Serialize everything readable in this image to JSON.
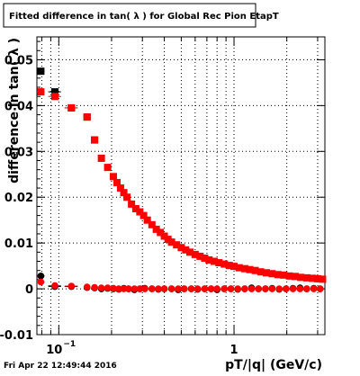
{
  "title": "Fitted difference in tan( λ ) for Global Rec Pion EtapT",
  "timestamp": "Fri Apr 22 12:49:44 2016",
  "colors": {
    "series_red": "#ff0000",
    "series_black": "#000000",
    "grid": "#000000",
    "frame": "#000000"
  },
  "chart_data": {
    "type": "scatter",
    "title": "Fitted difference in tan( λ ) for Global Rec Pion EtapT",
    "xlabel": "pT/|q| (GeV/c)",
    "ylabel": "difference in  tan( λ )",
    "xscale": "log",
    "xlim": [
      0.075,
      3.3
    ],
    "ylim": [
      -0.01,
      0.055
    ],
    "grid": true,
    "x_ticks": [
      {
        "value": 0.1,
        "label": "10",
        "exp": "−1"
      },
      {
        "value": 1,
        "label": "1",
        "exp": ""
      }
    ],
    "y_ticks": [
      {
        "value": -0.01,
        "label": "-0.01"
      },
      {
        "value": 0,
        "label": "0"
      },
      {
        "value": 0.01,
        "label": "0.01"
      },
      {
        "value": 0.02,
        "label": "0.02"
      },
      {
        "value": 0.03,
        "label": "0.03"
      },
      {
        "value": 0.04,
        "label": "0.04"
      },
      {
        "value": 0.05,
        "label": "0.05"
      }
    ],
    "series": [
      {
        "color": "#000000",
        "marker": "square",
        "x": [
          0.079,
          0.095,
          0.118,
          0.145,
          0.16
        ],
        "y": [
          0.0475,
          0.043,
          0.0395,
          0.0375,
          0.0325
        ],
        "xerr": [
          0.004,
          0.008,
          0.01,
          0.004,
          0.003
        ]
      },
      {
        "color": "#ff0000",
        "marker": "square",
        "x": [
          0.079,
          0.095,
          0.118,
          0.145,
          0.16,
          0.175,
          0.19,
          0.205,
          0.215,
          0.225,
          0.235,
          0.245,
          0.26,
          0.275,
          0.29,
          0.305,
          0.32,
          0.34,
          0.36,
          0.38,
          0.4,
          0.42,
          0.44,
          0.47,
          0.5,
          0.53,
          0.56,
          0.6,
          0.64,
          0.68,
          0.72,
          0.77,
          0.82,
          0.88,
          0.94,
          1.0,
          1.07,
          1.15,
          1.23,
          1.32,
          1.42,
          1.53,
          1.65,
          1.78,
          1.92,
          2.07,
          2.23,
          2.4,
          2.6,
          2.8,
          3.0,
          3.2
        ],
        "y": [
          0.043,
          0.042,
          0.0395,
          0.0375,
          0.0325,
          0.0285,
          0.0265,
          0.0245,
          0.0232,
          0.022,
          0.021,
          0.02,
          0.0185,
          0.0175,
          0.0168,
          0.016,
          0.015,
          0.014,
          0.013,
          0.0123,
          0.0115,
          0.0108,
          0.0102,
          0.0096,
          0.009,
          0.0085,
          0.008,
          0.0075,
          0.0071,
          0.0067,
          0.0063,
          0.006,
          0.0057,
          0.0054,
          0.0051,
          0.0049,
          0.0046,
          0.0044,
          0.0042,
          0.004,
          0.0037,
          0.0035,
          0.0033,
          0.0031,
          0.003,
          0.0028,
          0.0027,
          0.0025,
          0.0024,
          0.0023,
          0.0022,
          0.0021
        ],
        "xerr": [
          0.004,
          0.008,
          0.01,
          0.004,
          0.003,
          0.006,
          0.006,
          0.006,
          0.005,
          0.005,
          0.005,
          0.005,
          0.007,
          0.007,
          0.007,
          0.007,
          0.008,
          0.01,
          0.01,
          0.01,
          0.01,
          0.01,
          0.012,
          0.015,
          0.015,
          0.015,
          0.018,
          0.02,
          0.02,
          0.02,
          0.025,
          0.025,
          0.03,
          0.03,
          0.03,
          0.035,
          0.035,
          0.04,
          0.045,
          0.045,
          0.05,
          0.055,
          0.06,
          0.065,
          0.07,
          0.075,
          0.08,
          0.085,
          0.1,
          0.1,
          0.1,
          0.1
        ]
      },
      {
        "color": "#000000",
        "marker": "circle",
        "x": [
          0.079,
          0.095,
          0.118,
          0.145,
          0.16,
          0.175,
          0.19,
          0.205,
          0.22,
          0.235,
          0.25,
          0.27,
          0.29,
          0.31,
          0.34,
          0.37,
          0.4,
          0.44,
          0.48,
          0.52,
          0.57,
          0.62,
          0.68,
          0.74,
          0.8,
          0.88,
          0.96,
          1.05,
          1.15,
          1.26,
          1.38,
          1.51,
          1.65,
          1.81,
          1.98,
          2.17,
          2.38,
          2.6,
          2.85,
          3.1
        ],
        "y": [
          0.0028,
          0.0005,
          0.0005,
          0.0003,
          0.0002,
          0.0,
          0.0001,
          0.0,
          -0.0001,
          0.0001,
          0.0,
          -0.0002,
          0.0,
          0.0001,
          0.0,
          -0.0001,
          0.0,
          0.0,
          -0.0002,
          0.0,
          0.0,
          -0.0001,
          0.0,
          0.0,
          -0.0002,
          0.0,
          0.0,
          -0.0001,
          0.0,
          0.0002,
          0.0,
          0.0,
          0.0001,
          -0.0001,
          0.0,
          0.0001,
          0.0002,
          0.0,
          0.0001,
          0.0
        ],
        "xerr": [
          0.004,
          0.008,
          0.01,
          0.004,
          0.003,
          0.006,
          0.006,
          0.006,
          0.006,
          0.006,
          0.007,
          0.008,
          0.008,
          0.01,
          0.012,
          0.012,
          0.014,
          0.016,
          0.018,
          0.02,
          0.022,
          0.024,
          0.026,
          0.028,
          0.03,
          0.034,
          0.036,
          0.04,
          0.045,
          0.05,
          0.055,
          0.06,
          0.065,
          0.07,
          0.075,
          0.08,
          0.09,
          0.1,
          0.1,
          0.1
        ]
      },
      {
        "color": "#ff0000",
        "marker": "circle",
        "x": [
          0.079,
          0.095,
          0.118,
          0.145,
          0.16,
          0.175,
          0.19,
          0.205,
          0.22,
          0.235,
          0.25,
          0.27,
          0.29,
          0.31,
          0.34,
          0.37,
          0.4,
          0.44,
          0.48,
          0.52,
          0.57,
          0.62,
          0.68,
          0.74,
          0.8,
          0.88,
          0.96,
          1.05,
          1.15,
          1.26,
          1.38,
          1.51,
          1.65,
          1.81,
          1.98,
          2.17,
          2.38,
          2.6,
          2.85,
          3.1
        ],
        "y": [
          0.0015,
          0.0007,
          0.0006,
          0.0004,
          0.0003,
          0.0002,
          0.0002,
          0.0001,
          0.0,
          0.0,
          0.0,
          0.0,
          0.0,
          0.0,
          0.0,
          0.0,
          0.0,
          0.0,
          0.0,
          0.0,
          0.0,
          0.0,
          0.0,
          0.0,
          0.0,
          0.0,
          0.0,
          0.0,
          0.0,
          0.0,
          0.0,
          0.0,
          0.0,
          0.0,
          0.0,
          0.0,
          0.0,
          0.0,
          0.0,
          0.0
        ],
        "xerr": [
          0.004,
          0.008,
          0.01,
          0.004,
          0.003,
          0.006,
          0.006,
          0.006,
          0.006,
          0.006,
          0.007,
          0.008,
          0.008,
          0.01,
          0.012,
          0.012,
          0.014,
          0.016,
          0.018,
          0.02,
          0.022,
          0.024,
          0.026,
          0.028,
          0.03,
          0.034,
          0.036,
          0.04,
          0.045,
          0.05,
          0.055,
          0.06,
          0.065,
          0.07,
          0.075,
          0.08,
          0.09,
          0.1,
          0.1,
          0.1
        ]
      }
    ]
  }
}
